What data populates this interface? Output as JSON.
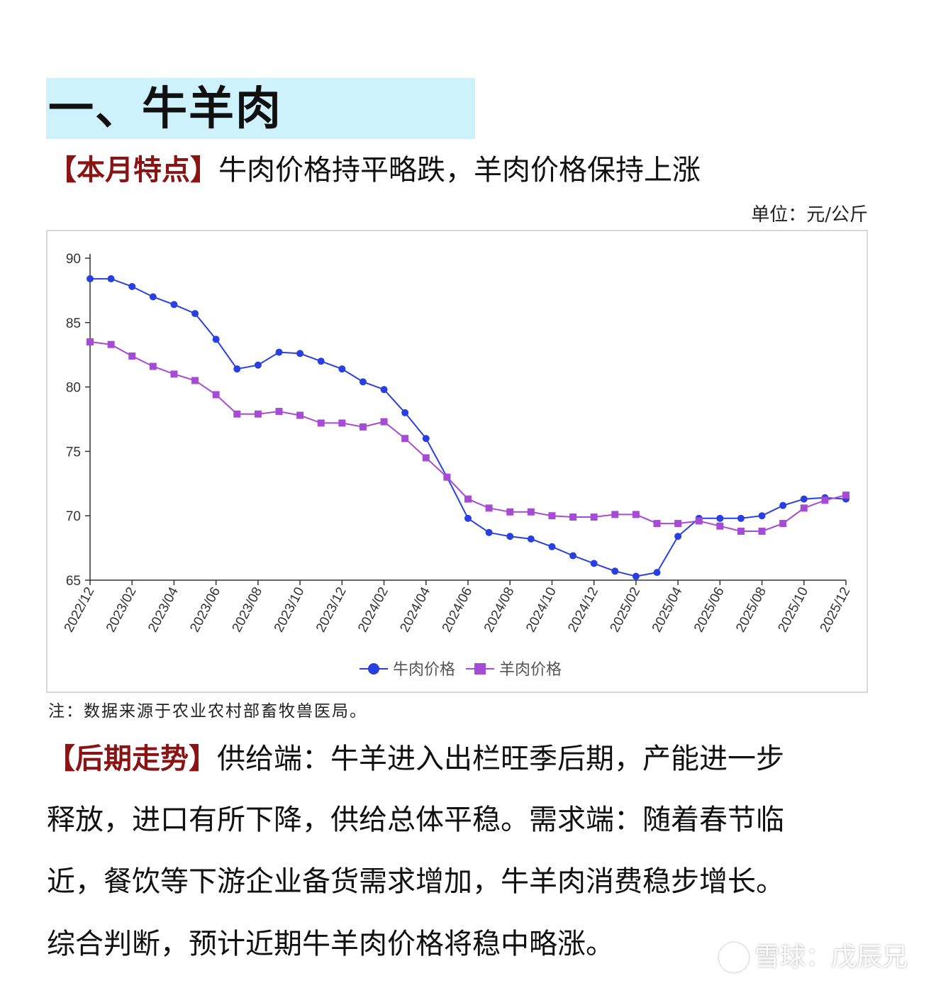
{
  "section": {
    "title": "一、牛羊肉"
  },
  "feature": {
    "label": "【本月特点】",
    "text": "牛肉价格持平略跌，羊肉价格保持上涨"
  },
  "unit": "单位：元/公斤",
  "chart_data": {
    "type": "line",
    "x": [
      "2022/12",
      "2023/01",
      "2023/02",
      "2023/03",
      "2023/04",
      "2023/05",
      "2023/06",
      "2023/07",
      "2023/08",
      "2023/09",
      "2023/10",
      "2023/11",
      "2023/12",
      "2024/01",
      "2024/02",
      "2024/03",
      "2024/04",
      "2024/05",
      "2024/06",
      "2024/07",
      "2024/08",
      "2024/09",
      "2024/10",
      "2024/11",
      "2024/12",
      "2025/01",
      "2025/02",
      "2025/03",
      "2025/04",
      "2025/05",
      "2025/06",
      "2025/07",
      "2025/08",
      "2025/09",
      "2025/10",
      "2025/11",
      "2025/12"
    ],
    "x_tick_labels": [
      "2022/12",
      "2023/02",
      "2023/04",
      "2023/06",
      "2023/08",
      "2023/10",
      "2023/12",
      "2024/02",
      "2024/04",
      "2024/06",
      "2024/08",
      "2024/10",
      "2024/12",
      "2025/02",
      "2025/04",
      "2025/06",
      "2025/08",
      "2025/10",
      "2025/12"
    ],
    "series": [
      {
        "name": "牛肉价格",
        "color": "#2a3fe0",
        "marker": "circle",
        "values": [
          88.4,
          88.4,
          87.8,
          87.0,
          86.4,
          85.7,
          83.7,
          81.4,
          81.7,
          82.7,
          82.6,
          82.0,
          81.4,
          80.4,
          79.8,
          78.0,
          76.0,
          73.0,
          69.8,
          68.7,
          68.4,
          68.2,
          67.6,
          66.9,
          66.3,
          65.7,
          65.3,
          65.6,
          68.4,
          69.8,
          69.8,
          69.8,
          70.0,
          70.8,
          71.3,
          71.4,
          71.3
        ]
      },
      {
        "name": "羊肉价格",
        "color": "#a64bd6",
        "marker": "square",
        "values": [
          83.5,
          83.3,
          82.4,
          81.6,
          81.0,
          80.5,
          79.4,
          77.9,
          77.9,
          78.1,
          77.8,
          77.2,
          77.2,
          76.9,
          77.3,
          76.0,
          74.5,
          73.0,
          71.3,
          70.6,
          70.3,
          70.3,
          70.0,
          69.9,
          69.9,
          70.1,
          70.1,
          69.4,
          69.4,
          69.6,
          69.2,
          68.8,
          68.8,
          69.4,
          70.6,
          71.2,
          71.6
        ]
      }
    ],
    "yticks": [
      65,
      70,
      75,
      80,
      85,
      90
    ],
    "ylim": [
      65,
      90
    ],
    "grid": false,
    "legend": "bottom-center"
  },
  "note": "注：数据来源于农业农村部畜牧兽医局。",
  "outlook": {
    "label": "【后期走势】",
    "line1": "供给端：牛羊进入出栏旺季后期，产能进一步",
    "line2": "释放，进口有所下降，供给总体平稳。需求端：随着春节临",
    "line3": "近，餐饮等下游企业备货需求增加，牛羊肉消费稳步增长。",
    "line4": "综合判断，预计近期牛羊肉价格将稳中略涨。"
  },
  "watermark": "雪球：戊辰兄"
}
